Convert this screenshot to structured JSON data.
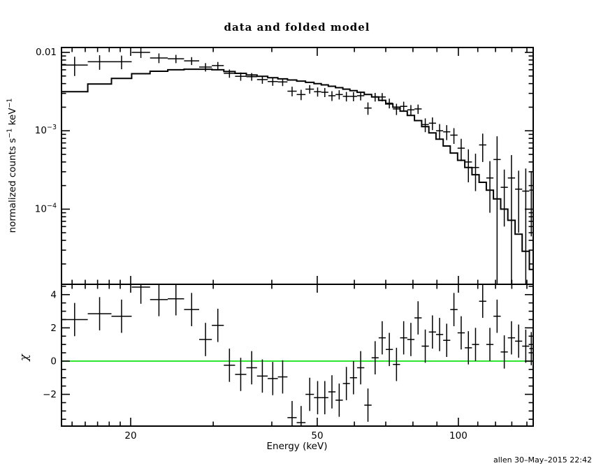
{
  "chart_data": {
    "type": "line",
    "title": "data and folded model",
    "xlabel": "Energy (keV)",
    "ylabel_top": "normalized counts s⁻¹ keV⁻¹",
    "ylabel_top_segments": [
      {
        "text": "normalized counts s"
      },
      {
        "text": "−1",
        "sup": true
      },
      {
        "text": " keV"
      },
      {
        "text": "−1",
        "sup": true
      }
    ],
    "ylabel_bottom": "χ",
    "timestamp": "allen 30–May–2015 22:42",
    "x_scale": "log",
    "x_range": [
      14.24,
      144.4
    ],
    "y_top_scale": "log",
    "y_top_range": [
      1.1e-05,
      0.01155
    ],
    "y_bottom_range": [
      -3.91,
      4.62
    ],
    "x_major_ticks": [
      20,
      50,
      100
    ],
    "x_tick_labels": [
      "20",
      "50",
      "100"
    ],
    "x_minor_ticks": [
      15,
      16,
      17,
      18,
      19,
      30,
      40,
      60,
      70,
      80,
      90,
      110,
      120,
      130,
      140
    ],
    "y_top_major_ticks": [
      0.01,
      0.001,
      0.0001
    ],
    "y_top_tick_labels": [
      {
        "base": "0.01",
        "exp": null
      },
      {
        "base": "10",
        "exp": "−3"
      },
      {
        "base": "10",
        "exp": "−4"
      }
    ],
    "y_bottom_major_ticks": [
      4,
      2,
      0,
      -2
    ],
    "y_bottom_tick_labels": [
      "4",
      "2",
      "0",
      "−2"
    ],
    "y_bottom_minor_step": 0.5,
    "chi_error": 1.0,
    "zero_line_color": "#00DF00",
    "data_color": "#000000",
    "model_color": "#000000",
    "bins_note": "each bin: [E_lo_keV, E_hi_keV, data_counts, data_err, folded_model, chi]",
    "bins": [
      [
        14.24,
        16.2,
        0.0069,
        0.0019,
        0.00315,
        2.5
      ],
      [
        16.2,
        18.2,
        0.0076,
        0.0016,
        0.00395,
        2.85
      ],
      [
        18.2,
        20.1,
        0.0076,
        0.0015,
        0.00465,
        2.7
      ],
      [
        20.1,
        22.0,
        0.01,
        0.0015,
        0.00535,
        4.45
      ],
      [
        22.0,
        24.0,
        0.0085,
        0.0012,
        0.00575,
        3.7
      ],
      [
        24.0,
        26.0,
        0.0083,
        0.001,
        0.006,
        3.75
      ],
      [
        26.0,
        28.0,
        0.0078,
        0.0009,
        0.0061,
        3.1
      ],
      [
        28.0,
        29.8,
        0.0065,
        0.0008,
        0.0061,
        1.3
      ],
      [
        29.8,
        31.6,
        0.0068,
        0.00075,
        0.006,
        2.15
      ],
      [
        31.6,
        33.4,
        0.0054,
        0.00065,
        0.0057,
        -0.25
      ],
      [
        33.4,
        35.3,
        0.00495,
        0.0006,
        0.0054,
        -0.8
      ],
      [
        35.3,
        37.2,
        0.0049,
        0.00055,
        0.00515,
        -0.4
      ],
      [
        37.2,
        39.2,
        0.0045,
        0.00052,
        0.00495,
        -0.9
      ],
      [
        39.2,
        41.2,
        0.00425,
        0.0005,
        0.00475,
        -1.05
      ],
      [
        41.2,
        43.2,
        0.0042,
        0.00048,
        0.0046,
        -0.95
      ],
      [
        43.2,
        45.2,
        0.0032,
        0.00045,
        0.00445,
        -3.4
      ],
      [
        45.2,
        47.2,
        0.0029,
        0.00044,
        0.0043,
        -3.7
      ],
      [
        47.2,
        49.2,
        0.0034,
        0.00043,
        0.00415,
        -2.0
      ],
      [
        49.2,
        51.0,
        0.00315,
        0.00042,
        0.004,
        -2.2
      ],
      [
        51.0,
        52.8,
        0.0031,
        0.00041,
        0.00385,
        -2.2
      ],
      [
        52.8,
        54.7,
        0.0028,
        0.0004,
        0.0037,
        -1.85
      ],
      [
        54.7,
        56.7,
        0.0029,
        0.00039,
        0.00355,
        -2.35
      ],
      [
        56.7,
        58.7,
        0.00275,
        0.00038,
        0.0034,
        -1.35
      ],
      [
        58.7,
        60.8,
        0.00275,
        0.00037,
        0.00325,
        -1.0
      ],
      [
        60.8,
        63.0,
        0.0028,
        0.00036,
        0.0031,
        -0.4
      ],
      [
        63.0,
        65.3,
        0.00195,
        0.00035,
        0.0029,
        -2.65
      ],
      [
        65.3,
        67.6,
        0.0027,
        0.00034,
        0.0027,
        0.2
      ],
      [
        67.6,
        70.0,
        0.0027,
        0.00033,
        0.00245,
        1.4
      ],
      [
        70.0,
        72.5,
        0.00225,
        0.00032,
        0.0022,
        0.7
      ],
      [
        72.5,
        75.1,
        0.0019,
        0.00031,
        0.002,
        -0.2
      ],
      [
        75.1,
        77.8,
        0.00205,
        0.0003,
        0.00178,
        1.4
      ],
      [
        77.8,
        80.6,
        0.00185,
        0.00028,
        0.00157,
        1.3
      ],
      [
        80.6,
        83.5,
        0.0019,
        0.00026,
        0.00135,
        2.6
      ],
      [
        83.5,
        86.5,
        0.0012,
        0.00024,
        0.00113,
        0.9
      ],
      [
        86.5,
        89.6,
        0.00125,
        0.00023,
        0.00094,
        1.75
      ],
      [
        89.6,
        92.8,
        0.001,
        0.00022,
        0.00078,
        1.6
      ],
      [
        92.8,
        96.1,
        0.00097,
        0.00021,
        0.00064,
        1.25
      ],
      [
        96.1,
        99.6,
        0.00088,
        0.0002,
        0.00052,
        3.1
      ],
      [
        99.6,
        103.2,
        0.0006,
        0.00019,
        0.00042,
        1.7
      ],
      [
        103.2,
        106.9,
        0.0004,
        0.00018,
        0.00034,
        0.8
      ],
      [
        106.9,
        110.7,
        0.00034,
        0.00017,
        0.000275,
        1.0
      ],
      [
        110.7,
        114.7,
        0.00066,
        0.00026,
        0.00022,
        3.6
      ],
      [
        114.7,
        118.8,
        0.00025,
        0.00016,
        0.000175,
        1.0
      ],
      [
        118.8,
        123.1,
        0.00043,
        0.00042,
        0.000135,
        2.7
      ],
      [
        123.1,
        127.5,
        0.00019,
        0.00013,
        0.0001,
        0.55
      ],
      [
        127.5,
        132.1,
        0.00025,
        0.00024,
        7.2e-05,
        1.4
      ],
      [
        132.1,
        136.8,
        0.00018,
        0.00013,
        4.8e-05,
        1.2
      ],
      [
        136.8,
        141.7,
        0.00017,
        0.00016,
        2.9e-05,
        0.9
      ],
      [
        141.7,
        144.4,
        0.000175,
        0.00013,
        1.7e-05,
        0.75
      ]
    ]
  }
}
